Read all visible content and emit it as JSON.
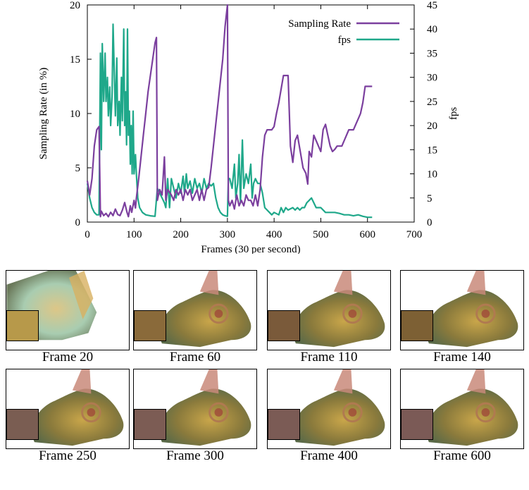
{
  "chart_data": {
    "type": "line",
    "xlabel": "Frames (30 per second)",
    "ylabel": "Sampling Rate (in %)",
    "y2label": "fps",
    "xlim": [
      0,
      700
    ],
    "ylim": [
      0,
      20
    ],
    "y2lim": [
      0,
      45
    ],
    "xticks": [
      0,
      100,
      200,
      300,
      400,
      500,
      600,
      700
    ],
    "yticks": [
      0,
      5,
      10,
      15,
      20
    ],
    "y2ticks": [
      0,
      5,
      10,
      15,
      20,
      25,
      30,
      35,
      40,
      45
    ],
    "legend_position": "top-right",
    "series": [
      {
        "name": "Sampling Rate",
        "axis": "left",
        "color": "#7b3f9e",
        "points": [
          [
            0,
            3.8
          ],
          [
            5,
            2.5
          ],
          [
            10,
            4
          ],
          [
            15,
            7
          ],
          [
            20,
            8.5
          ],
          [
            25,
            8.8
          ],
          [
            28,
            0.5
          ],
          [
            30,
            1
          ],
          [
            35,
            0.6
          ],
          [
            40,
            0.8
          ],
          [
            45,
            0.5
          ],
          [
            50,
            0.9
          ],
          [
            55,
            0.6
          ],
          [
            60,
            1.2
          ],
          [
            65,
            0.7
          ],
          [
            70,
            0.6
          ],
          [
            75,
            1.1
          ],
          [
            80,
            1.8
          ],
          [
            85,
            0.9
          ],
          [
            88,
            0.5
          ],
          [
            92,
            1.5
          ],
          [
            95,
            0.9
          ],
          [
            100,
            2
          ],
          [
            103,
            1.3
          ],
          [
            105,
            2.2
          ],
          [
            110,
            4
          ],
          [
            115,
            6
          ],
          [
            120,
            8
          ],
          [
            125,
            10
          ],
          [
            130,
            12
          ],
          [
            135,
            13.5
          ],
          [
            140,
            15
          ],
          [
            145,
            16.5
          ],
          [
            148,
            17
          ],
          [
            150,
            2
          ],
          [
            155,
            3
          ],
          [
            160,
            2.5
          ],
          [
            165,
            6
          ],
          [
            168,
            2
          ],
          [
            172,
            3
          ],
          [
            180,
            2.5
          ],
          [
            185,
            2
          ],
          [
            190,
            3
          ],
          [
            195,
            2.5
          ],
          [
            200,
            3
          ],
          [
            205,
            2
          ],
          [
            210,
            3
          ],
          [
            215,
            2.5
          ],
          [
            220,
            3
          ],
          [
            225,
            2
          ],
          [
            230,
            2.5
          ],
          [
            235,
            3
          ],
          [
            240,
            2
          ],
          [
            245,
            3
          ],
          [
            250,
            2
          ],
          [
            255,
            3
          ],
          [
            260,
            3.2
          ],
          [
            265,
            5
          ],
          [
            270,
            7
          ],
          [
            275,
            9
          ],
          [
            280,
            11
          ],
          [
            285,
            13
          ],
          [
            290,
            15
          ],
          [
            295,
            18
          ],
          [
            300,
            20
          ],
          [
            302,
            2
          ],
          [
            305,
            1.5
          ],
          [
            310,
            2
          ],
          [
            315,
            1.2
          ],
          [
            320,
            2.5
          ],
          [
            325,
            1.5
          ],
          [
            330,
            2
          ],
          [
            335,
            1.5
          ],
          [
            340,
            2.5
          ],
          [
            345,
            2
          ],
          [
            350,
            2
          ],
          [
            355,
            1.5
          ],
          [
            360,
            2.5
          ],
          [
            365,
            1.5
          ],
          [
            370,
            3
          ],
          [
            375,
            6
          ],
          [
            380,
            8
          ],
          [
            385,
            8.5
          ],
          [
            395,
            8.5
          ],
          [
            400,
            8.8
          ],
          [
            405,
            10
          ],
          [
            410,
            11
          ],
          [
            420,
            13.5
          ],
          [
            430,
            13.5
          ],
          [
            435,
            7
          ],
          [
            440,
            5.5
          ],
          [
            445,
            7.5
          ],
          [
            450,
            8
          ],
          [
            458,
            6
          ],
          [
            462,
            5
          ],
          [
            468,
            4.5
          ],
          [
            472,
            3.5
          ],
          [
            475,
            6.5
          ],
          [
            480,
            6
          ],
          [
            485,
            8
          ],
          [
            495,
            7
          ],
          [
            500,
            6.5
          ],
          [
            505,
            8.5
          ],
          [
            510,
            9
          ],
          [
            515,
            8
          ],
          [
            520,
            7
          ],
          [
            525,
            6.5
          ],
          [
            530,
            6.7
          ],
          [
            535,
            7
          ],
          [
            545,
            7
          ],
          [
            550,
            7.5
          ],
          [
            555,
            8
          ],
          [
            560,
            8.5
          ],
          [
            570,
            8.5
          ],
          [
            575,
            9
          ],
          [
            580,
            9.5
          ],
          [
            585,
            10
          ],
          [
            590,
            11
          ],
          [
            595,
            12.5
          ],
          [
            610,
            12.5
          ]
        ]
      },
      {
        "name": "fps",
        "axis": "right",
        "color": "#1fa88a",
        "points": [
          [
            0,
            8
          ],
          [
            5,
            5
          ],
          [
            10,
            3
          ],
          [
            15,
            2
          ],
          [
            20,
            1.5
          ],
          [
            25,
            1.5
          ],
          [
            28,
            35
          ],
          [
            30,
            15
          ],
          [
            32,
            37
          ],
          [
            35,
            25
          ],
          [
            38,
            35
          ],
          [
            40,
            25
          ],
          [
            43,
            30
          ],
          [
            45,
            22
          ],
          [
            48,
            28
          ],
          [
            50,
            20
          ],
          [
            53,
            26
          ],
          [
            55,
            41
          ],
          [
            58,
            30
          ],
          [
            60,
            22
          ],
          [
            63,
            34
          ],
          [
            65,
            20
          ],
          [
            68,
            25
          ],
          [
            70,
            18
          ],
          [
            73,
            30
          ],
          [
            75,
            21
          ],
          [
            78,
            40
          ],
          [
            80,
            20
          ],
          [
            82,
            27
          ],
          [
            84,
            16
          ],
          [
            86,
            40
          ],
          [
            88,
            18
          ],
          [
            90,
            23
          ],
          [
            92,
            12
          ],
          [
            94,
            20
          ],
          [
            96,
            10
          ],
          [
            98,
            23
          ],
          [
            100,
            10
          ],
          [
            103,
            14
          ],
          [
            105,
            10
          ],
          [
            108,
            5
          ],
          [
            112,
            3
          ],
          [
            118,
            2
          ],
          [
            125,
            1.5
          ],
          [
            135,
            1.3
          ],
          [
            145,
            1.2
          ],
          [
            150,
            7
          ],
          [
            155,
            6
          ],
          [
            160,
            5
          ],
          [
            165,
            4
          ],
          [
            168,
            3
          ],
          [
            172,
            9
          ],
          [
            176,
            3
          ],
          [
            180,
            9
          ],
          [
            185,
            7
          ],
          [
            190,
            5
          ],
          [
            195,
            8
          ],
          [
            200,
            6
          ],
          [
            205,
            9.5
          ],
          [
            208,
            6
          ],
          [
            212,
            10
          ],
          [
            215,
            7
          ],
          [
            220,
            8.5
          ],
          [
            225,
            6
          ],
          [
            230,
            9
          ],
          [
            235,
            7
          ],
          [
            240,
            8
          ],
          [
            245,
            6
          ],
          [
            250,
            9
          ],
          [
            255,
            7
          ],
          [
            260,
            8
          ],
          [
            265,
            7.5
          ],
          [
            270,
            8
          ],
          [
            275,
            5
          ],
          [
            280,
            3
          ],
          [
            285,
            2
          ],
          [
            290,
            1.5
          ],
          [
            295,
            1.3
          ],
          [
            300,
            1.2
          ],
          [
            302,
            9
          ],
          [
            305,
            9
          ],
          [
            310,
            7
          ],
          [
            315,
            12
          ],
          [
            318,
            5
          ],
          [
            322,
            8
          ],
          [
            325,
            14
          ],
          [
            328,
            4
          ],
          [
            332,
            17
          ],
          [
            335,
            7
          ],
          [
            340,
            10
          ],
          [
            345,
            8
          ],
          [
            350,
            12
          ],
          [
            353,
            5
          ],
          [
            356,
            8
          ],
          [
            360,
            9
          ],
          [
            365,
            8
          ],
          [
            370,
            8
          ],
          [
            375,
            6
          ],
          [
            380,
            3
          ],
          [
            385,
            2.5
          ],
          [
            395,
            1.5
          ],
          [
            400,
            2
          ],
          [
            410,
            1.5
          ],
          [
            415,
            3
          ],
          [
            420,
            2
          ],
          [
            425,
            3
          ],
          [
            430,
            2.5
          ],
          [
            440,
            3
          ],
          [
            445,
            2.5
          ],
          [
            450,
            3
          ],
          [
            455,
            2.5
          ],
          [
            460,
            3
          ],
          [
            465,
            3
          ],
          [
            470,
            4
          ],
          [
            475,
            4.5
          ],
          [
            480,
            5
          ],
          [
            485,
            4
          ],
          [
            490,
            3
          ],
          [
            500,
            3
          ],
          [
            510,
            2
          ],
          [
            520,
            2
          ],
          [
            530,
            2
          ],
          [
            540,
            1.8
          ],
          [
            550,
            1.5
          ],
          [
            560,
            1.5
          ],
          [
            570,
            1.3
          ],
          [
            580,
            1.5
          ],
          [
            590,
            1.2
          ],
          [
            600,
            1
          ],
          [
            610,
            1
          ]
        ]
      }
    ]
  },
  "frames": [
    {
      "caption": "Frame 20"
    },
    {
      "caption": "Frame 60"
    },
    {
      "caption": "Frame 110"
    },
    {
      "caption": "Frame 140"
    },
    {
      "caption": "Frame 250"
    },
    {
      "caption": "Frame 300"
    },
    {
      "caption": "Frame 400"
    },
    {
      "caption": "Frame 600"
    }
  ]
}
